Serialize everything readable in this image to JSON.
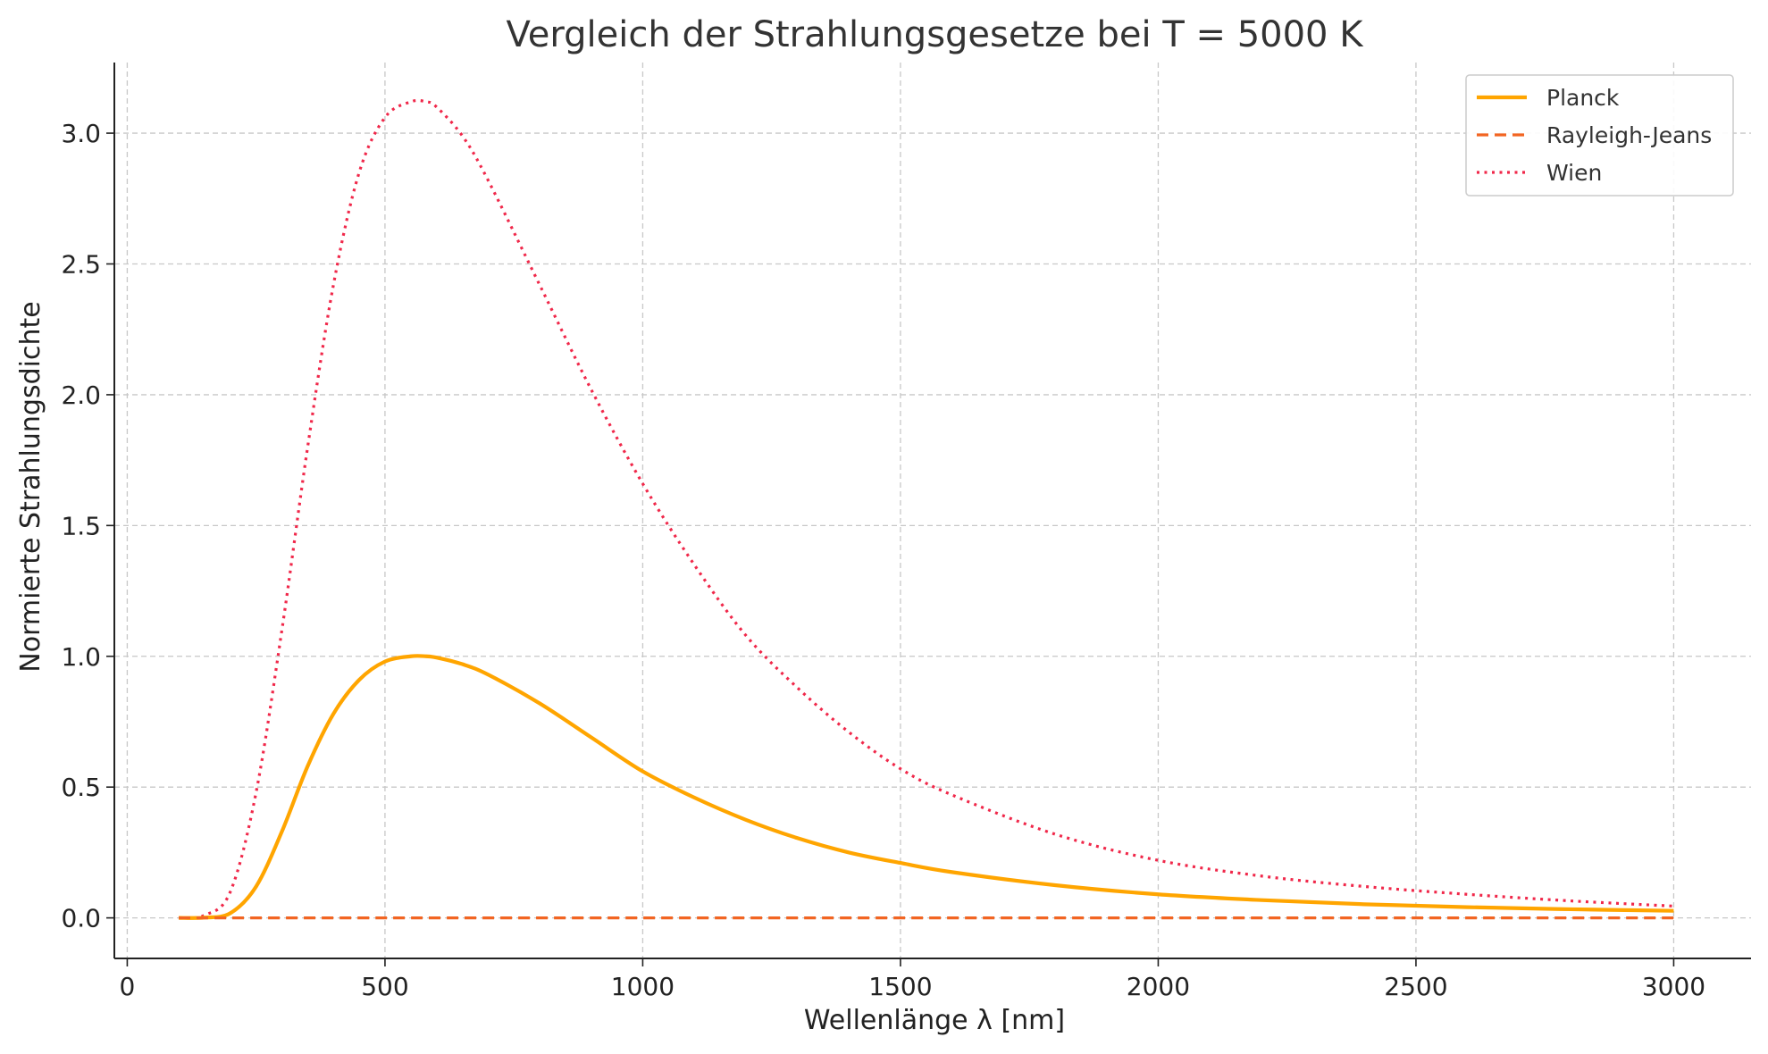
{
  "chart_data": {
    "type": "line",
    "title": "Vergleich der Strahlungsgesetze bei T = 5000 K",
    "xlabel": "Wellenlänge λ [nm]",
    "ylabel": "Normierte Strahlungsdichte",
    "xlim": [
      -25,
      3150
    ],
    "ylim": [
      -0.155,
      3.27
    ],
    "xticks": [
      0,
      500,
      1000,
      1500,
      2000,
      2500,
      3000
    ],
    "xtick_labels": [
      "0",
      "500",
      "1000",
      "1500",
      "2000",
      "2500",
      "3000"
    ],
    "yticks": [
      0.0,
      0.5,
      1.0,
      1.5,
      2.0,
      2.5,
      3.0
    ],
    "ytick_labels": [
      "0.0",
      "0.5",
      "1.0",
      "1.5",
      "2.0",
      "2.5",
      "3.0"
    ],
    "grid": true,
    "legend_position": "top-right",
    "series": [
      {
        "name": "Planck",
        "color": "#FFA500",
        "style": "solid",
        "x": [
          100,
          150,
          200,
          250,
          300,
          350,
          400,
          450,
          500,
          550,
          580,
          600,
          650,
          700,
          800,
          900,
          1000,
          1100,
          1200,
          1300,
          1400,
          1500,
          1600,
          1800,
          2000,
          2200,
          2400,
          2600,
          2800,
          3000
        ],
        "y": [
          0.0,
          0.001,
          0.018,
          0.12,
          0.33,
          0.58,
          0.78,
          0.91,
          0.98,
          1.0,
          1.0,
          0.995,
          0.97,
          0.93,
          0.82,
          0.69,
          0.56,
          0.46,
          0.375,
          0.305,
          0.25,
          0.21,
          0.175,
          0.125,
          0.09,
          0.068,
          0.052,
          0.041,
          0.033,
          0.027
        ]
      },
      {
        "name": "Rayleigh-Jeans",
        "color": "#F26522",
        "style": "dashed",
        "x": [
          100,
          500,
          1000,
          1500,
          2000,
          2500,
          3000
        ],
        "y": [
          0.0,
          0.0,
          0.0,
          0.0,
          0.0,
          0.0,
          0.0
        ]
      },
      {
        "name": "Wien",
        "color": "#F0284A",
        "style": "dotted",
        "x": [
          100,
          150,
          200,
          250,
          300,
          350,
          400,
          450,
          500,
          550,
          580,
          600,
          650,
          700,
          800,
          900,
          1000,
          1100,
          1200,
          1300,
          1400,
          1500,
          1600,
          1800,
          2000,
          2200,
          2400,
          2600,
          2800,
          3000
        ],
        "y": [
          0.0,
          0.01,
          0.1,
          0.48,
          1.1,
          1.8,
          2.42,
          2.85,
          3.06,
          3.12,
          3.12,
          3.1,
          2.99,
          2.82,
          2.42,
          2.02,
          1.66,
          1.35,
          1.08,
          0.88,
          0.71,
          0.57,
          0.47,
          0.32,
          0.22,
          0.16,
          0.12,
          0.09,
          0.065,
          0.045
        ]
      }
    ]
  }
}
